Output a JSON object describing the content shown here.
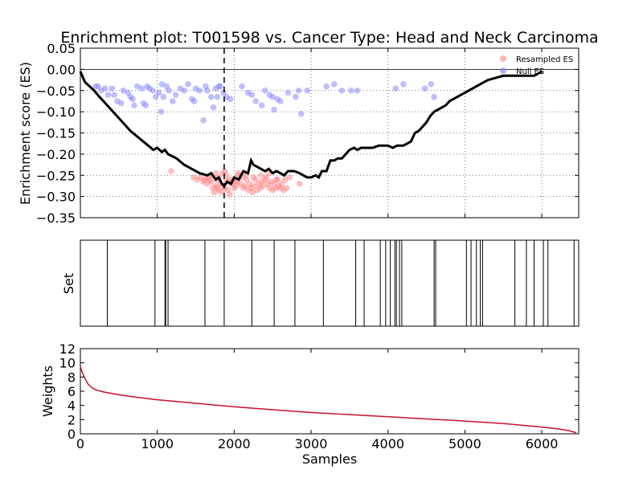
{
  "title": "Enrichment plot: T001598 vs. Cancer Type: Head and Neck Carcinoma",
  "colors": {
    "resampled": "#ff7f7f",
    "null": "#7f7fff",
    "running_es": "#000000",
    "weights": "#c8102e",
    "grid": "#555555"
  },
  "chart_data": [
    {
      "id": "es",
      "type": "line",
      "ylabel": "Enrichment score (ES)",
      "xlim": [
        0,
        6480
      ],
      "ylim": [
        -0.35,
        0.05
      ],
      "yticks": [
        0.05,
        0.0,
        -0.05,
        -0.1,
        -0.15,
        -0.2,
        -0.25,
        -0.3,
        -0.35
      ],
      "ytick_labels": [
        "0.05",
        "0.00",
        "−0.05",
        "−0.10",
        "−0.15",
        "−0.20",
        "−0.25",
        "−0.30",
        "−0.35"
      ],
      "xticks": [
        0,
        1000,
        2000,
        3000,
        4000,
        5000,
        6000
      ],
      "grid": true,
      "legend": {
        "position": "top-right",
        "entries": [
          {
            "label": "Resampled ES",
            "color_key": "resampled"
          },
          {
            "label": "Null ES",
            "color_key": "null"
          }
        ]
      },
      "vline_x": 1870,
      "running_es": {
        "x": [
          0,
          60,
          120,
          180,
          250,
          350,
          450,
          550,
          650,
          750,
          850,
          950,
          1000,
          1060,
          1100,
          1140,
          1250,
          1350,
          1450,
          1550,
          1650,
          1700,
          1760,
          1800,
          1840,
          1870,
          1910,
          1960,
          2000,
          2060,
          2120,
          2180,
          2220,
          2250,
          2300,
          2350,
          2400,
          2450,
          2500,
          2550,
          2600,
          2650,
          2700,
          2780,
          2850,
          2900,
          2950,
          3000,
          3060,
          3100,
          3140,
          3200,
          3250,
          3300,
          3350,
          3400,
          3450,
          3500,
          3560,
          3600,
          3650,
          3700,
          3800,
          3880,
          3950,
          4000,
          4060,
          4120,
          4200,
          4250,
          4300,
          4350,
          4400,
          4450,
          4500,
          4550,
          4600,
          4650,
          4700,
          4750,
          4800,
          4850,
          4900,
          4950,
          5000,
          5050,
          5100,
          5150,
          5200,
          5250,
          5300,
          5400,
          5500,
          5600,
          5700,
          5800,
          5900,
          5950,
          6000
        ],
        "y": [
          -0.005,
          -0.03,
          -0.04,
          -0.05,
          -0.065,
          -0.085,
          -0.105,
          -0.125,
          -0.145,
          -0.16,
          -0.175,
          -0.19,
          -0.185,
          -0.195,
          -0.19,
          -0.2,
          -0.21,
          -0.225,
          -0.235,
          -0.245,
          -0.25,
          -0.245,
          -0.26,
          -0.255,
          -0.27,
          -0.275,
          -0.265,
          -0.27,
          -0.255,
          -0.26,
          -0.24,
          -0.245,
          -0.215,
          -0.225,
          -0.23,
          -0.235,
          -0.24,
          -0.235,
          -0.245,
          -0.24,
          -0.245,
          -0.25,
          -0.24,
          -0.24,
          -0.245,
          -0.25,
          -0.255,
          -0.255,
          -0.25,
          -0.255,
          -0.24,
          -0.24,
          -0.215,
          -0.215,
          -0.21,
          -0.21,
          -0.2,
          -0.19,
          -0.185,
          -0.19,
          -0.185,
          -0.185,
          -0.185,
          -0.18,
          -0.18,
          -0.18,
          -0.185,
          -0.18,
          -0.18,
          -0.175,
          -0.17,
          -0.15,
          -0.145,
          -0.135,
          -0.125,
          -0.11,
          -0.1,
          -0.095,
          -0.09,
          -0.085,
          -0.075,
          -0.07,
          -0.065,
          -0.06,
          -0.055,
          -0.05,
          -0.045,
          -0.04,
          -0.035,
          -0.03,
          -0.025,
          -0.02,
          -0.015,
          -0.015,
          -0.015,
          -0.015,
          -0.015,
          -0.01,
          -0.005
        ]
      },
      "resampled_es": {
        "x": [
          1180,
          1470,
          1520,
          1560,
          1600,
          1620,
          1650,
          1680,
          1700,
          1720,
          1740,
          1760,
          1780,
          1800,
          1820,
          1840,
          1860,
          1880,
          1900,
          1920,
          1940,
          1960,
          1980,
          2000,
          2020,
          2040,
          2060,
          2080,
          2100,
          2120,
          2140,
          2160,
          2180,
          2200,
          2220,
          2240,
          2260,
          2280,
          2300,
          2320,
          2340,
          2360,
          2380,
          2400,
          2420,
          2440,
          2460,
          2480,
          2500,
          2520,
          2540,
          2560,
          2580,
          2600,
          2620,
          2640,
          2660,
          2680,
          2720,
          2850,
          1700,
          1760,
          1800,
          1850,
          1880,
          1930,
          2050,
          2150,
          2250,
          2350,
          2450,
          2550,
          1650,
          1780,
          1900,
          2000
        ],
        "y": [
          -0.24,
          -0.255,
          -0.26,
          -0.255,
          -0.265,
          -0.26,
          -0.27,
          -0.26,
          -0.265,
          -0.28,
          -0.29,
          -0.275,
          -0.28,
          -0.285,
          -0.27,
          -0.29,
          -0.275,
          -0.28,
          -0.265,
          -0.285,
          -0.295,
          -0.27,
          -0.26,
          -0.28,
          -0.275,
          -0.265,
          -0.25,
          -0.27,
          -0.255,
          -0.28,
          -0.275,
          -0.26,
          -0.285,
          -0.27,
          -0.28,
          -0.29,
          -0.275,
          -0.26,
          -0.285,
          -0.27,
          -0.28,
          -0.265,
          -0.275,
          -0.26,
          -0.255,
          -0.27,
          -0.28,
          -0.265,
          -0.285,
          -0.27,
          -0.28,
          -0.26,
          -0.275,
          -0.28,
          -0.27,
          -0.285,
          -0.26,
          -0.28,
          -0.255,
          -0.27,
          -0.25,
          -0.245,
          -0.255,
          -0.245,
          -0.24,
          -0.26,
          -0.245,
          -0.25,
          -0.255,
          -0.25,
          -0.245,
          -0.26,
          -0.255,
          -0.26,
          -0.25,
          -0.265
        ]
      },
      "null_es": {
        "x": [
          200,
          230,
          270,
          320,
          360,
          410,
          440,
          480,
          530,
          560,
          620,
          650,
          680,
          700,
          740,
          800,
          820,
          850,
          870,
          900,
          940,
          980,
          1020,
          1050,
          1060,
          1080,
          1120,
          1150,
          1200,
          1240,
          1300,
          1350,
          1400,
          1450,
          1480,
          1500,
          1550,
          1600,
          1630,
          1650,
          1700,
          1730,
          1760,
          1780,
          1800,
          1820,
          1860,
          1900,
          1950,
          2100,
          2180,
          2230,
          2280,
          2360,
          2400,
          2460,
          2500,
          2520,
          2560,
          2600,
          2700,
          2800,
          2840,
          2870,
          2950,
          3200,
          3300,
          3400,
          3520,
          3600,
          4100,
          4200,
          4480,
          4560,
          4600
        ],
        "y": [
          -0.04,
          -0.04,
          -0.05,
          -0.045,
          -0.06,
          -0.045,
          -0.06,
          -0.075,
          -0.08,
          -0.05,
          -0.055,
          -0.065,
          -0.07,
          -0.085,
          -0.04,
          -0.045,
          -0.08,
          -0.085,
          -0.04,
          -0.045,
          -0.05,
          -0.065,
          -0.055,
          -0.1,
          -0.035,
          -0.065,
          -0.04,
          -0.05,
          -0.075,
          -0.06,
          -0.045,
          -0.05,
          -0.035,
          -0.07,
          -0.075,
          -0.045,
          -0.05,
          -0.12,
          -0.04,
          -0.05,
          -0.065,
          -0.09,
          -0.045,
          -0.065,
          -0.04,
          -0.04,
          -0.055,
          -0.065,
          -0.07,
          -0.04,
          -0.055,
          -0.06,
          -0.075,
          -0.085,
          -0.05,
          -0.06,
          -0.065,
          -0.095,
          -0.07,
          -0.075,
          -0.055,
          -0.065,
          -0.05,
          -0.105,
          -0.05,
          -0.04,
          -0.035,
          -0.05,
          -0.05,
          -0.05,
          -0.045,
          -0.035,
          -0.045,
          -0.035,
          -0.065
        ]
      }
    },
    {
      "id": "set",
      "type": "bar",
      "ylabel": "Set",
      "xlim": [
        0,
        6480
      ],
      "set_positions": [
        350,
        970,
        1100,
        1110,
        1140,
        1620,
        1870,
        2230,
        2520,
        2790,
        3160,
        3580,
        3690,
        3900,
        3970,
        4030,
        4090,
        4110,
        4150,
        4180,
        4600,
        4620,
        5020,
        5080,
        5150,
        5200,
        5230,
        5650,
        5800,
        5900,
        6020,
        6080,
        6420
      ]
    },
    {
      "id": "weights",
      "type": "line",
      "ylabel": "Weights",
      "xlabel": "Samples",
      "xlim": [
        0,
        6480
      ],
      "ylim": [
        0,
        12
      ],
      "yticks": [
        0,
        2,
        4,
        6,
        8,
        10,
        12
      ],
      "ytick_labels": [
        "0",
        "2",
        "4",
        "6",
        "8",
        "10",
        "12"
      ],
      "xticks": [
        0,
        1000,
        2000,
        3000,
        4000,
        5000,
        6000
      ],
      "xtick_labels": [
        "0",
        "1000",
        "2000",
        "3000",
        "4000",
        "5000",
        "6000"
      ],
      "grid": false,
      "series": {
        "x": [
          0,
          20,
          50,
          100,
          150,
          200,
          300,
          500,
          700,
          1000,
          1500,
          2000,
          2500,
          3000,
          3500,
          4000,
          4500,
          5000,
          5500,
          6000,
          6200,
          6350,
          6450
        ],
        "y": [
          9.5,
          8.8,
          8.0,
          7.0,
          6.5,
          6.2,
          5.9,
          5.5,
          5.2,
          4.8,
          4.3,
          3.8,
          3.4,
          3.0,
          2.7,
          2.4,
          2.1,
          1.8,
          1.45,
          0.95,
          0.7,
          0.45,
          0.15
        ]
      }
    }
  ]
}
